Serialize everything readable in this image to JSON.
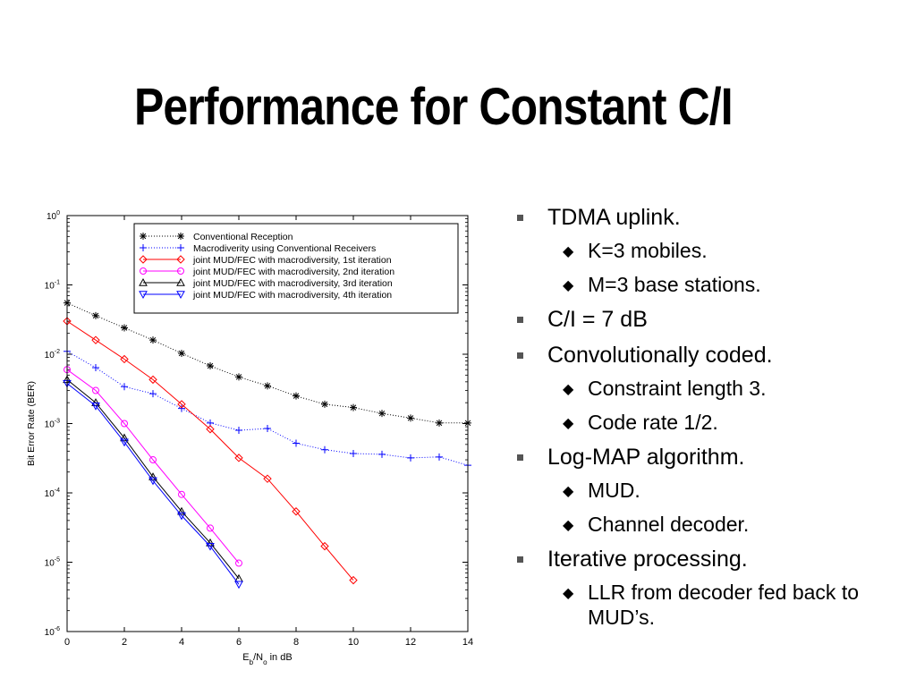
{
  "slide": {
    "title": "Performance for Constant C/I"
  },
  "bullets": [
    {
      "text": "TDMA uplink.",
      "sub": [
        "K=3 mobiles.",
        "M=3 base stations."
      ]
    },
    {
      "text": "C/I = 7 dB",
      "sub": []
    },
    {
      "text": "Convolutionally coded.",
      "sub": [
        "Constraint length 3.",
        "Code rate 1/2."
      ]
    },
    {
      "text": "Log-MAP algorithm.",
      "sub": [
        "MUD.",
        "Channel decoder."
      ]
    },
    {
      "text": "Iterative processing.",
      "sub": [
        "LLR from decoder fed back to MUD’s."
      ]
    }
  ],
  "chart_data": {
    "type": "line",
    "xlabel": {
      "base": "E",
      "sub1": "b",
      "mid": "/N",
      "sub2": "o",
      "rest": " in dB"
    },
    "ylabel": "Bit Error Rate (BER)",
    "xlim": [
      0,
      14
    ],
    "ylim": [
      1e-06,
      1
    ],
    "yscale": "log",
    "xticks": [
      0,
      2,
      4,
      6,
      8,
      10,
      12,
      14
    ],
    "yticks": [
      {
        "base": "10",
        "exp": "0",
        "value": 1
      },
      {
        "base": "10",
        "exp": "-1",
        "value": 0.1
      },
      {
        "base": "10",
        "exp": "-2",
        "value": 0.01
      },
      {
        "base": "10",
        "exp": "-3",
        "value": 0.001
      },
      {
        "base": "10",
        "exp": "-4",
        "value": 0.0001
      },
      {
        "base": "10",
        "exp": "-5",
        "value": 1e-05
      },
      {
        "base": "10",
        "exp": "-6",
        "value": 1e-06
      }
    ],
    "legend_position": "top-right",
    "series": [
      {
        "name": "Conventional Reception",
        "color": "#000000",
        "marker": "star",
        "dash": "1,2",
        "x": [
          0,
          1,
          2,
          3,
          4,
          5,
          6,
          7,
          8,
          9,
          10,
          11,
          12,
          13,
          14
        ],
        "y": [
          0.055,
          0.036,
          0.024,
          0.016,
          0.0103,
          0.0068,
          0.0047,
          0.0035,
          0.0025,
          0.0019,
          0.0017,
          0.0014,
          0.0012,
          0.00102,
          0.00102
        ]
      },
      {
        "name": "Macrodiverity using Conventional Receivers",
        "color": "#0000ff",
        "marker": "plus",
        "dash": "1,2",
        "x": [
          0,
          1,
          2,
          3,
          4,
          5,
          6,
          7,
          8,
          9,
          10,
          11,
          12,
          13,
          14
        ],
        "y": [
          0.011,
          0.0064,
          0.0034,
          0.0027,
          0.00165,
          0.00102,
          0.0008,
          0.00085,
          0.00052,
          0.00042,
          0.00037,
          0.00036,
          0.00032,
          0.00033,
          0.00025
        ]
      },
      {
        "name": "joint MUD/FEC with macrodiversity, 1st iteration",
        "color": "#ff0000",
        "marker": "diamond",
        "dash": "",
        "x": [
          0,
          1,
          2,
          3,
          4,
          5,
          6,
          7,
          8,
          9,
          10
        ],
        "y": [
          0.03,
          0.016,
          0.0085,
          0.0043,
          0.0019,
          0.00083,
          0.00032,
          0.00016,
          5.4e-05,
          1.7e-05,
          5.5e-06
        ]
      },
      {
        "name": "joint MUD/FEC with macrodiversity, 2nd iteration",
        "color": "#ff00ff",
        "marker": "circle",
        "dash": "",
        "x": [
          0,
          1,
          2,
          3,
          4,
          5,
          6
        ],
        "y": [
          0.006,
          0.003,
          0.001,
          0.0003,
          9.5e-05,
          3.1e-05,
          9.7e-06
        ]
      },
      {
        "name": "joint MUD/FEC with macrodiversity, 3rd iteration",
        "color": "#000000",
        "marker": "triangle-up",
        "dash": "",
        "x": [
          0,
          1,
          2,
          3,
          4,
          5,
          6
        ],
        "y": [
          0.0043,
          0.002,
          0.00062,
          0.00017,
          5.4e-05,
          1.9e-05,
          5.8e-06
        ]
      },
      {
        "name": "joint MUD/FEC with macrodiversity, 4th iteration",
        "color": "#0000ff",
        "marker": "triangle-down",
        "dash": "",
        "x": [
          0,
          1,
          2,
          3,
          4,
          5,
          6
        ],
        "y": [
          0.0038,
          0.0018,
          0.00054,
          0.00015,
          4.7e-05,
          1.7e-05,
          4.8e-06
        ]
      }
    ]
  }
}
